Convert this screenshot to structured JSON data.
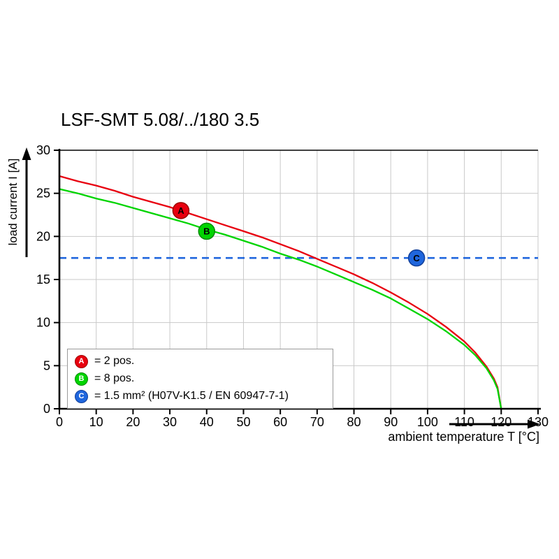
{
  "chart_data": {
    "type": "line",
    "title": "LSF-SMT 5.08/../180 3.5",
    "xlabel": "ambient temperature T [°C]",
    "ylabel": "load current I [A]",
    "xlim": [
      0,
      130
    ],
    "ylim": [
      0,
      30
    ],
    "x_ticks": [
      0,
      10,
      20,
      30,
      40,
      50,
      60,
      70,
      80,
      90,
      100,
      110,
      120,
      130
    ],
    "y_ticks": [
      0,
      5,
      10,
      15,
      20,
      25,
      30
    ],
    "grid": true,
    "grid_color": "#c9c9c9",
    "axis_color": "#000000",
    "legend_position": "lower-left",
    "series": [
      {
        "id": "A",
        "legend_label": "= 2 pos.",
        "type": "curve",
        "color": "#e8000f",
        "marker_stroke": "#9b0000",
        "marker_at": [
          33,
          23.0
        ],
        "points": [
          [
            0,
            27.0
          ],
          [
            5,
            26.4
          ],
          [
            10,
            25.9
          ],
          [
            15,
            25.3
          ],
          [
            20,
            24.6
          ],
          [
            25,
            24.0
          ],
          [
            30,
            23.4
          ],
          [
            35,
            22.7
          ],
          [
            40,
            22.0
          ],
          [
            45,
            21.3
          ],
          [
            50,
            20.6
          ],
          [
            55,
            19.9
          ],
          [
            60,
            19.1
          ],
          [
            65,
            18.3
          ],
          [
            70,
            17.4
          ],
          [
            75,
            16.5
          ],
          [
            80,
            15.6
          ],
          [
            85,
            14.6
          ],
          [
            90,
            13.5
          ],
          [
            95,
            12.3
          ],
          [
            100,
            11.0
          ],
          [
            105,
            9.5
          ],
          [
            110,
            7.8
          ],
          [
            113,
            6.5
          ],
          [
            116,
            4.9
          ],
          [
            118,
            3.5
          ],
          [
            119,
            2.5
          ],
          [
            120,
            0.0
          ]
        ]
      },
      {
        "id": "B",
        "legend_label": "= 8 pos.",
        "type": "curve",
        "color": "#00d400",
        "marker_stroke": "#008a00",
        "marker_at": [
          40,
          20.6
        ],
        "points": [
          [
            0,
            25.5
          ],
          [
            5,
            25.0
          ],
          [
            10,
            24.4
          ],
          [
            15,
            23.9
          ],
          [
            20,
            23.3
          ],
          [
            25,
            22.7
          ],
          [
            30,
            22.1
          ],
          [
            35,
            21.5
          ],
          [
            40,
            20.8
          ],
          [
            45,
            20.2
          ],
          [
            50,
            19.5
          ],
          [
            55,
            18.8
          ],
          [
            60,
            18.0
          ],
          [
            65,
            17.3
          ],
          [
            70,
            16.5
          ],
          [
            75,
            15.6
          ],
          [
            80,
            14.7
          ],
          [
            85,
            13.8
          ],
          [
            90,
            12.8
          ],
          [
            95,
            11.6
          ],
          [
            100,
            10.4
          ],
          [
            105,
            9.0
          ],
          [
            110,
            7.4
          ],
          [
            113,
            6.2
          ],
          [
            116,
            4.7
          ],
          [
            118,
            3.3
          ],
          [
            119,
            2.3
          ],
          [
            120,
            0.0
          ]
        ]
      },
      {
        "id": "C",
        "legend_label": "= 1.5 mm² (H07V-K1.5 / EN 60947-7-1)",
        "type": "hline",
        "color": "#1f66dd",
        "marker_stroke": "#123f99",
        "dashed": true,
        "y": 17.5,
        "marker_at": [
          97,
          17.5
        ]
      }
    ]
  }
}
